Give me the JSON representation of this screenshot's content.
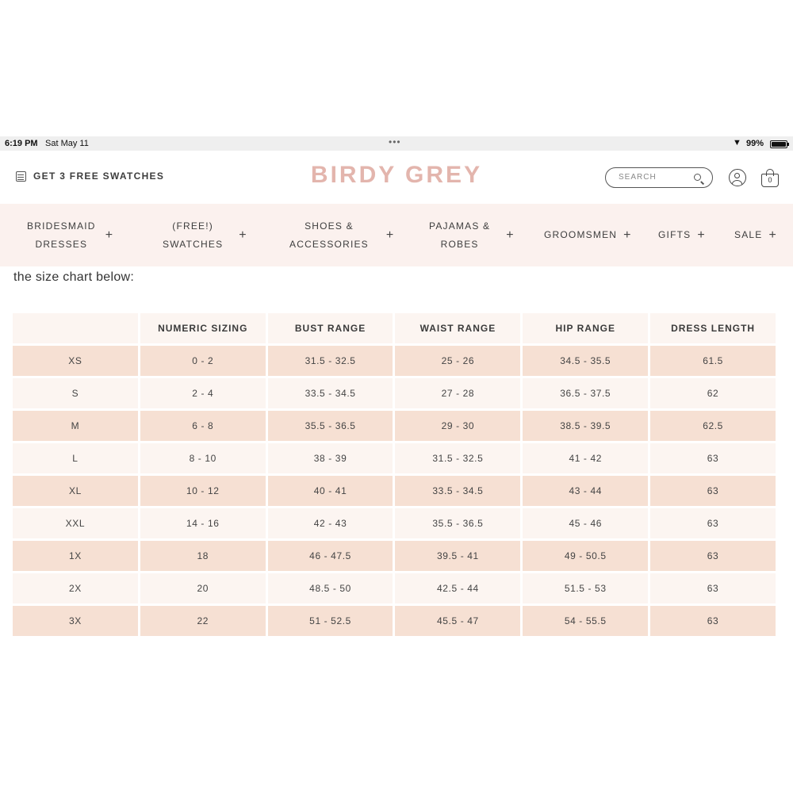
{
  "status_bar": {
    "time": "6:19 PM",
    "date": "Sat May 11",
    "battery": "99%"
  },
  "header": {
    "promo_label": "GET 3 FREE SWATCHES",
    "logo": "BIRDY GREY",
    "search_placeholder": "SEARCH",
    "cart_count": "0"
  },
  "nav": {
    "items": [
      {
        "line1": "BRIDESMAID",
        "line2": "DRESSES"
      },
      {
        "line1": "(FREE!)",
        "line2": "SWATCHES"
      },
      {
        "line1": "SHOES &",
        "line2": "ACCESSORIES"
      },
      {
        "line1": "PAJAMAS &",
        "line2": "ROBES"
      },
      {
        "line1": "GROOMSMEN",
        "line2": ""
      },
      {
        "line1": "GIFTS",
        "line2": ""
      },
      {
        "line1": "SALE",
        "line2": ""
      }
    ],
    "plus": "+"
  },
  "intro_text": "the size chart below:",
  "size_chart": {
    "columns": [
      "",
      "NUMERIC SIZING",
      "BUST RANGE",
      "WAIST RANGE",
      "HIP RANGE",
      "DRESS LENGTH"
    ],
    "rows": [
      [
        "XS",
        "0 - 2",
        "31.5 - 32.5",
        "25 - 26",
        "34.5 - 35.5",
        "61.5"
      ],
      [
        "S",
        "2 - 4",
        "33.5 - 34.5",
        "27 - 28",
        "36.5 - 37.5",
        "62"
      ],
      [
        "M",
        "6 - 8",
        "35.5 - 36.5",
        "29 - 30",
        "38.5 - 39.5",
        "62.5"
      ],
      [
        "L",
        "8 - 10",
        "38 - 39",
        "31.5 - 32.5",
        "41 - 42",
        "63"
      ],
      [
        "XL",
        "10 - 12",
        "40 - 41",
        "33.5 - 34.5",
        "43 - 44",
        "63"
      ],
      [
        "XXL",
        "14 - 16",
        "42 - 43",
        "35.5 - 36.5",
        "45 - 46",
        "63"
      ],
      [
        "1X",
        "18",
        "46 - 47.5",
        "39.5 - 41",
        "49 - 50.5",
        "63"
      ],
      [
        "2X",
        "20",
        "48.5 - 50",
        "42.5 - 44",
        "51.5 - 53",
        "63"
      ],
      [
        "3X",
        "22",
        "51 - 52.5",
        "45.5 - 47",
        "54 - 55.5",
        "63"
      ]
    ]
  },
  "colors": {
    "logo": "#e3b5ad",
    "nav_bg": "#fbf1ee",
    "row_dark": "#f6e0d3",
    "row_light": "#fcf5f1"
  }
}
